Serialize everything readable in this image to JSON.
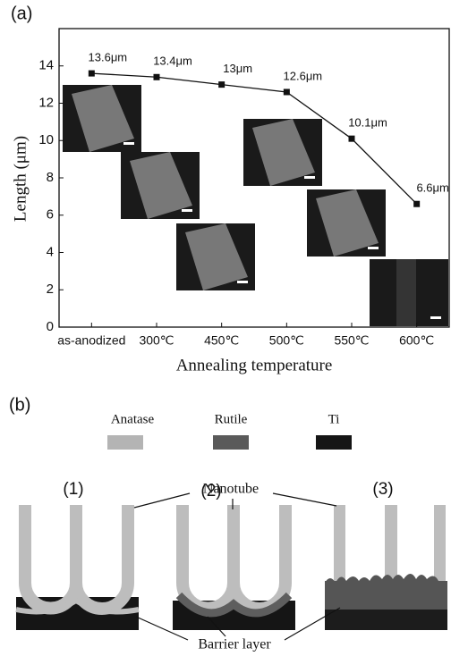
{
  "chart_data": {
    "type": "line",
    "panel_label": "(a)",
    "xlabel": "Annealing temperature",
    "ylabel": "Length (μm)",
    "categories": [
      "as-anodized",
      "300℃",
      "450℃",
      "500℃",
      "550℃",
      "600℃"
    ],
    "values": [
      13.6,
      13.4,
      13,
      12.6,
      10.1,
      6.6
    ],
    "value_labels": [
      "13.6μm",
      "13.4μm",
      "13μm",
      "12.6μm",
      "10.1μm",
      "6.6μm"
    ],
    "color": "#111111",
    "ylim": [
      0,
      16
    ],
    "yticks": [
      0,
      2,
      4,
      6,
      8,
      10,
      12,
      14
    ]
  },
  "diagram": {
    "panel_label": "(b)",
    "legend": [
      "Anatase",
      "Rutile",
      "Ti"
    ],
    "stages": [
      "(1)",
      "(2)",
      "(3)"
    ],
    "nanotube_label": "Nanotube",
    "barrier_label": "Barrier layer"
  }
}
